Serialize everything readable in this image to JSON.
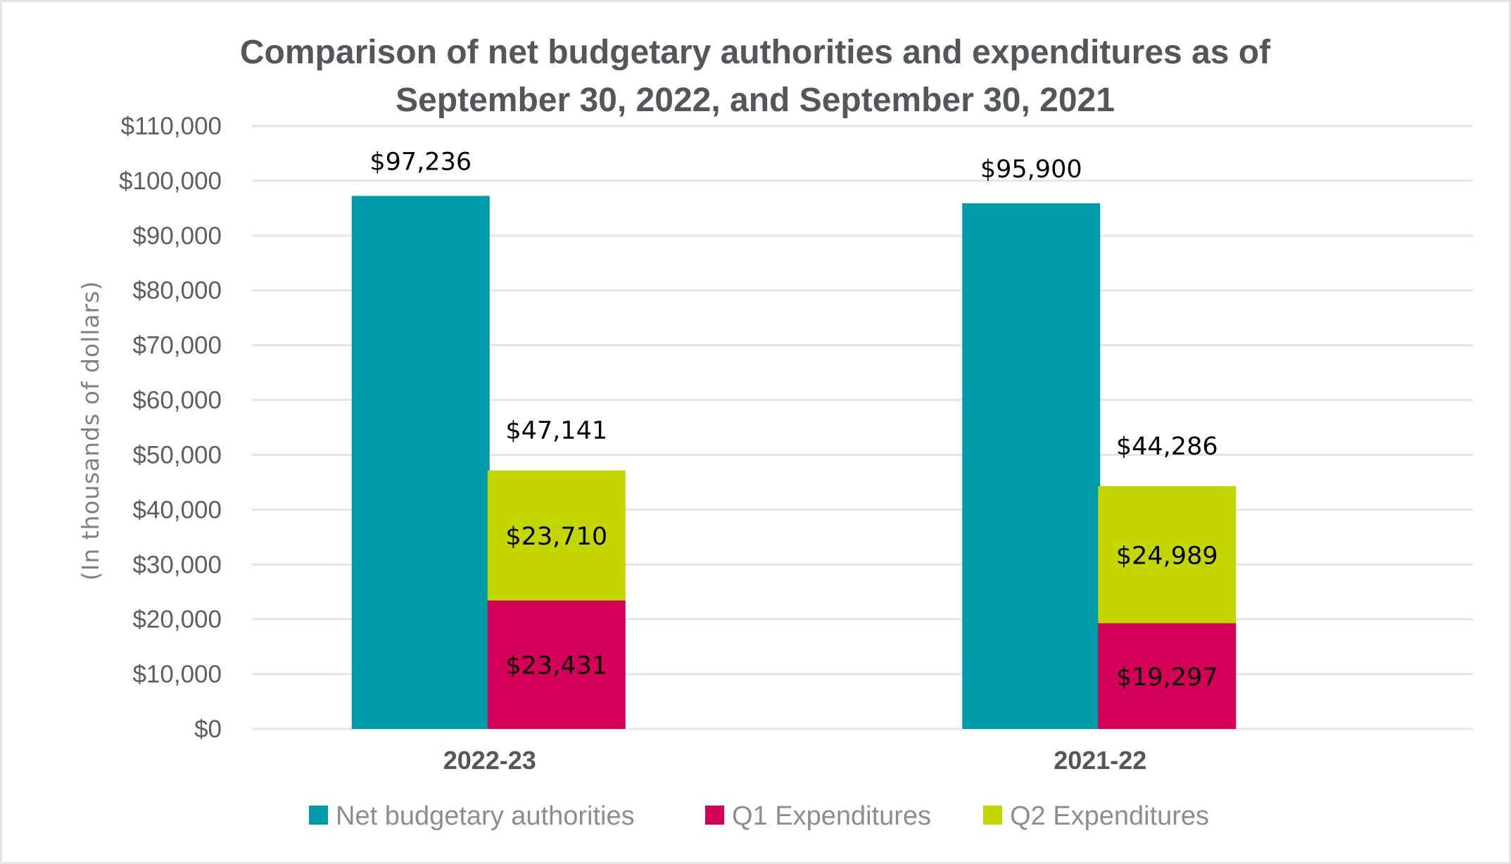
{
  "chart_data": {
    "type": "bar",
    "stacked_partial": true,
    "title": "Comparison of net budgetary authorities and expenditures as of September 30, 2022, and September 30, 2021",
    "title_lines": [
      "Comparison of net budgetary authorities and expenditures as of",
      "September 30, 2022, and September 30, 2021"
    ],
    "xlabel": "",
    "ylabel": "(In thousands of dollars)",
    "ylim": [
      0,
      110000
    ],
    "y_tick_step": 10000,
    "y_ticks": [
      "$0",
      "$10,000",
      "$20,000",
      "$30,000",
      "$40,000",
      "$50,000",
      "$60,000",
      "$70,000",
      "$80,000",
      "$90,000",
      "$100,000",
      "$110,000"
    ],
    "grid": true,
    "categories": [
      "2022-23",
      "2021-22"
    ],
    "series": [
      {
        "name": "Net budgetary authorities",
        "color": "#009BA8",
        "stack": "authorities",
        "values": [
          97236,
          95900
        ],
        "labels": [
          "$97,236",
          "$95,900"
        ]
      },
      {
        "name": "Q1 Expenditures",
        "color": "#D40057",
        "stack": "expenditures",
        "values": [
          23431,
          19297
        ],
        "labels": [
          "$23,431",
          "$19,297"
        ]
      },
      {
        "name": "Q2 Expenditures",
        "color": "#C4D600",
        "stack": "expenditures",
        "values": [
          23710,
          24989
        ],
        "labels": [
          "$23,710",
          "$24,989"
        ]
      }
    ],
    "stack_totals": {
      "labels": [
        "$47,141",
        "$44,286"
      ],
      "values": [
        47141,
        44286
      ]
    },
    "legend_position": "bottom"
  }
}
